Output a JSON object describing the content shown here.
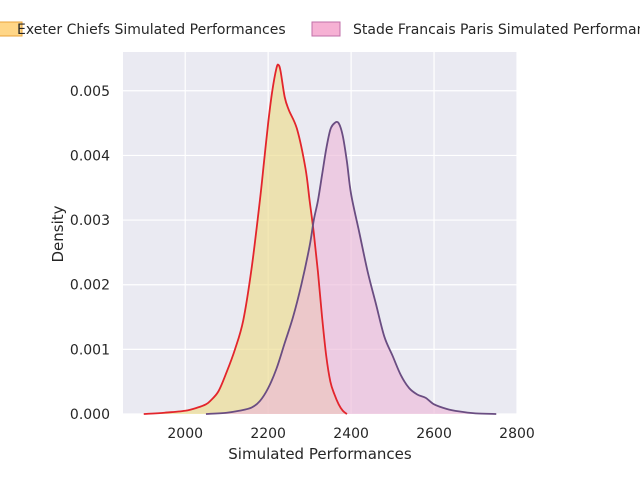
{
  "chart_data": {
    "type": "area",
    "xlabel": "Simulated Performances",
    "ylabel": "Density",
    "xlim": [
      1850,
      2800
    ],
    "ylim": [
      0,
      0.0056
    ],
    "x_ticks": [
      2000,
      2200,
      2400,
      2600,
      2800
    ],
    "x_tick_labels": [
      "2000",
      "2200",
      "2400",
      "2600",
      "2800"
    ],
    "y_ticks": [
      0,
      0.001,
      0.002,
      0.003,
      0.004,
      0.005
    ],
    "y_tick_labels": [
      "0.000",
      "0.001",
      "0.002",
      "0.003",
      "0.004",
      "0.005"
    ],
    "grid": true,
    "legend_position": "top",
    "series": [
      {
        "name": "Exeter Chiefs Simulated Performances",
        "fill_color": "#ecdc8c",
        "line_color": "#e3252c",
        "legend_color": "#ffd27a",
        "legend_edge": "#e8a33a",
        "points": [
          [
            1900,
            0.0
          ],
          [
            1950,
            2e-05
          ],
          [
            2000,
            5e-05
          ],
          [
            2030,
            0.0001
          ],
          [
            2050,
            0.00015
          ],
          [
            2060,
            0.0002
          ],
          [
            2080,
            0.00035
          ],
          [
            2100,
            0.00065
          ],
          [
            2120,
            0.001
          ],
          [
            2140,
            0.00145
          ],
          [
            2160,
            0.00225
          ],
          [
            2180,
            0.0033
          ],
          [
            2190,
            0.0039
          ],
          [
            2200,
            0.0045
          ],
          [
            2210,
            0.005
          ],
          [
            2220,
            0.00535
          ],
          [
            2225,
            0.0054
          ],
          [
            2230,
            0.0053
          ],
          [
            2240,
            0.0049
          ],
          [
            2250,
            0.0047
          ],
          [
            2270,
            0.0044
          ],
          [
            2290,
            0.0038
          ],
          [
            2300,
            0.0033
          ],
          [
            2310,
            0.0028
          ],
          [
            2320,
            0.0022
          ],
          [
            2330,
            0.0015
          ],
          [
            2340,
            0.0009
          ],
          [
            2350,
            0.0005
          ],
          [
            2360,
            0.0003
          ],
          [
            2370,
            0.00015
          ],
          [
            2380,
            5e-05
          ],
          [
            2390,
            0.0
          ]
        ]
      },
      {
        "name": "Stade Francais Paris Simulated Performances",
        "fill_color": "#ecbad8",
        "line_color": "#6a4d82",
        "legend_color": "#f5a8cf",
        "legend_edge": "#c06fa8",
        "points": [
          [
            2050,
            0.0
          ],
          [
            2100,
            2e-05
          ],
          [
            2130,
            5e-05
          ],
          [
            2160,
            0.0001
          ],
          [
            2180,
            0.0002
          ],
          [
            2200,
            0.0004
          ],
          [
            2220,
            0.0007
          ],
          [
            2240,
            0.0011
          ],
          [
            2260,
            0.0015
          ],
          [
            2280,
            0.002
          ],
          [
            2300,
            0.0026
          ],
          [
            2310,
            0.003
          ],
          [
            2320,
            0.0033
          ],
          [
            2330,
            0.0037
          ],
          [
            2340,
            0.0041
          ],
          [
            2350,
            0.0044
          ],
          [
            2360,
            0.0045
          ],
          [
            2370,
            0.0045
          ],
          [
            2380,
            0.0043
          ],
          [
            2390,
            0.0039
          ],
          [
            2400,
            0.0034
          ],
          [
            2420,
            0.0028
          ],
          [
            2440,
            0.0022
          ],
          [
            2460,
            0.0017
          ],
          [
            2480,
            0.0012
          ],
          [
            2500,
            0.0009
          ],
          [
            2520,
            0.0006
          ],
          [
            2540,
            0.0004
          ],
          [
            2560,
            0.0003
          ],
          [
            2580,
            0.00025
          ],
          [
            2600,
            0.00015
          ],
          [
            2630,
            8e-05
          ],
          [
            2660,
            4e-05
          ],
          [
            2700,
            1e-05
          ],
          [
            2750,
            0.0
          ]
        ]
      }
    ]
  }
}
